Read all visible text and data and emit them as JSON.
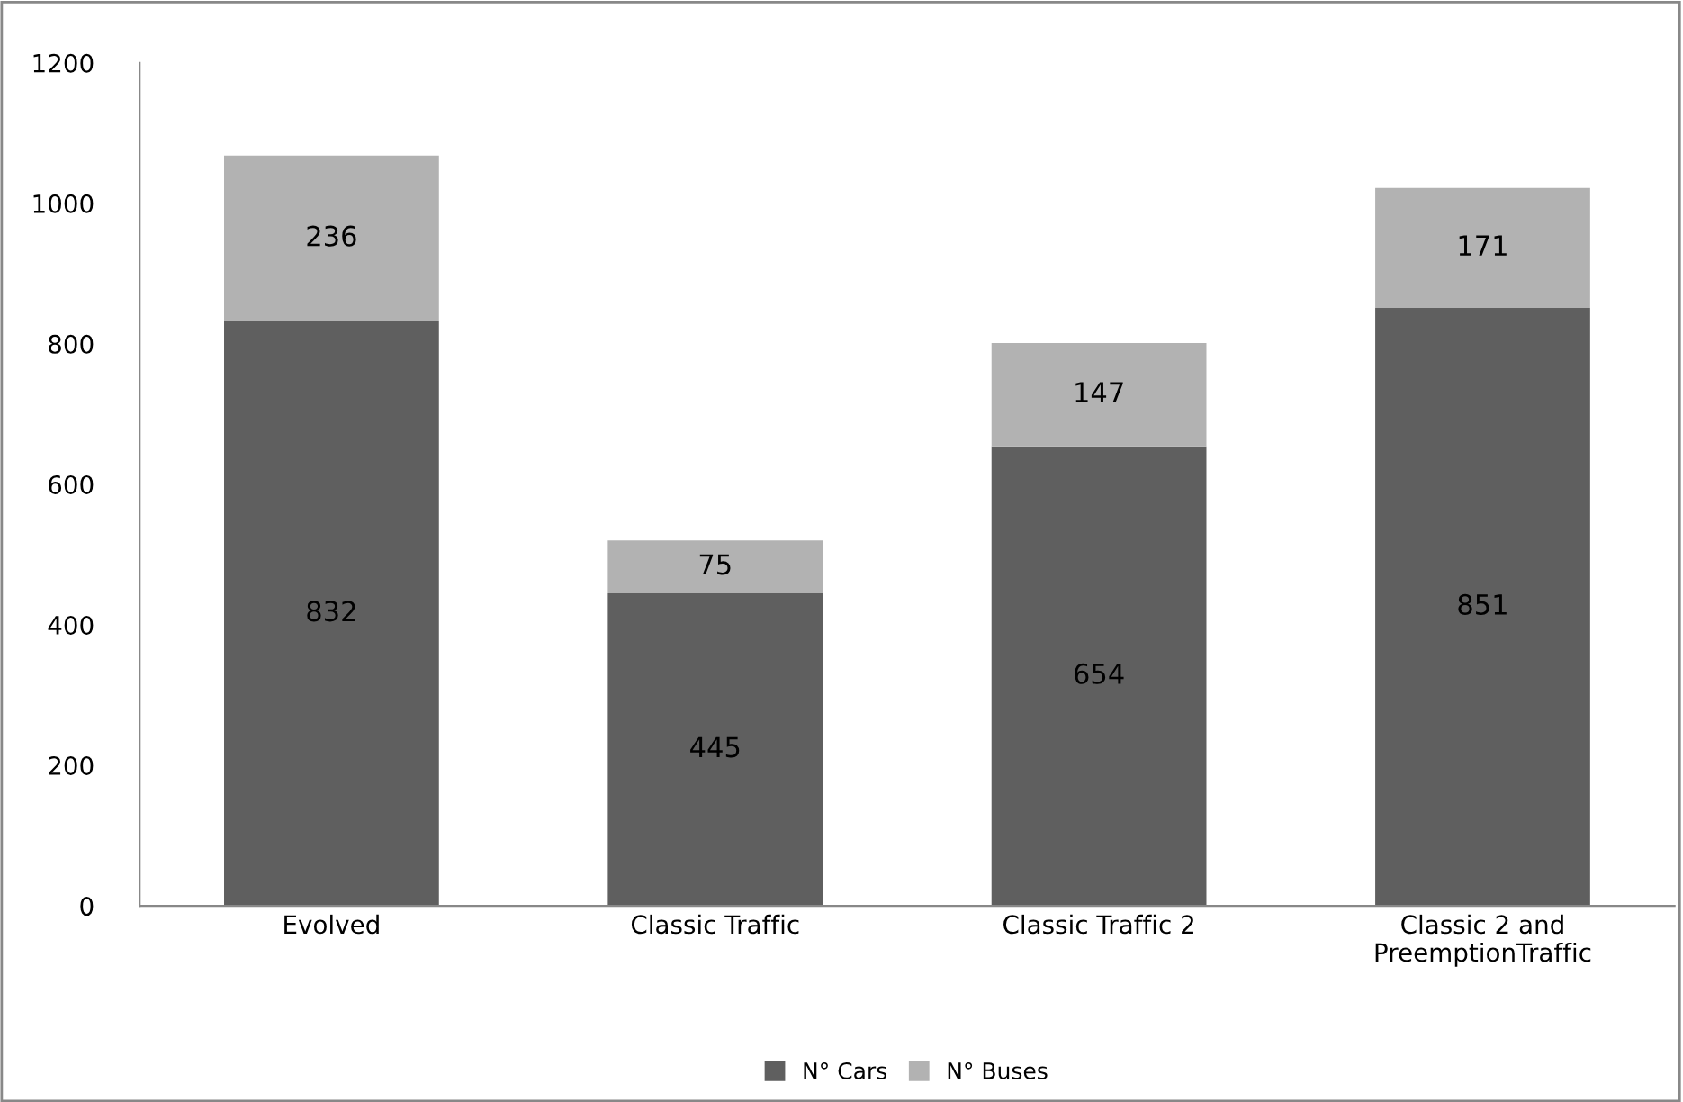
{
  "chart_data": {
    "type": "bar",
    "stacked": true,
    "categories": [
      "Evolved",
      "Classic Traffic",
      "Classic Traffic 2",
      "Classic 2 and\nPreemptionTraffic"
    ],
    "series": [
      {
        "name": "N° Cars",
        "color": "#5f5f5f",
        "values": [
          832,
          445,
          654,
          851
        ]
      },
      {
        "name": "N° Buses",
        "color": "#b2b2b2",
        "values": [
          236,
          75,
          147,
          171
        ]
      }
    ],
    "ylim": [
      0,
      1200
    ],
    "yticks": [
      0,
      200,
      400,
      600,
      800,
      1000,
      1200
    ],
    "grid": false,
    "legend": "bottom",
    "data_labels": true
  }
}
